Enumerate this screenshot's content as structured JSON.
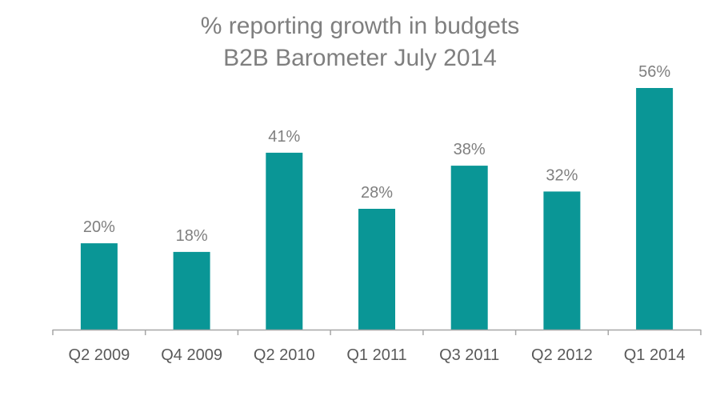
{
  "chart_data": {
    "type": "bar",
    "title": [
      "% reporting growth in budgets",
      "B2B Barometer July 2014"
    ],
    "xlabel": "",
    "ylabel": "",
    "categories": [
      "Q2 2009",
      "Q4 2009",
      "Q2 2010",
      "Q1 2011",
      "Q3 2011",
      "Q2 2012",
      "Q1 2014"
    ],
    "values": [
      20,
      18,
      41,
      28,
      38,
      32,
      56
    ],
    "data_labels": [
      "20%",
      "18%",
      "41%",
      "28%",
      "38%",
      "32%",
      "56%"
    ],
    "ylim": [
      0,
      56
    ],
    "grid": false,
    "legend": "none",
    "colors": {
      "bar": "#0a9696",
      "axis": "#a6a6a6",
      "title": "#7f7f7f",
      "label": "#7f7f7f",
      "tick": "#595959"
    }
  }
}
